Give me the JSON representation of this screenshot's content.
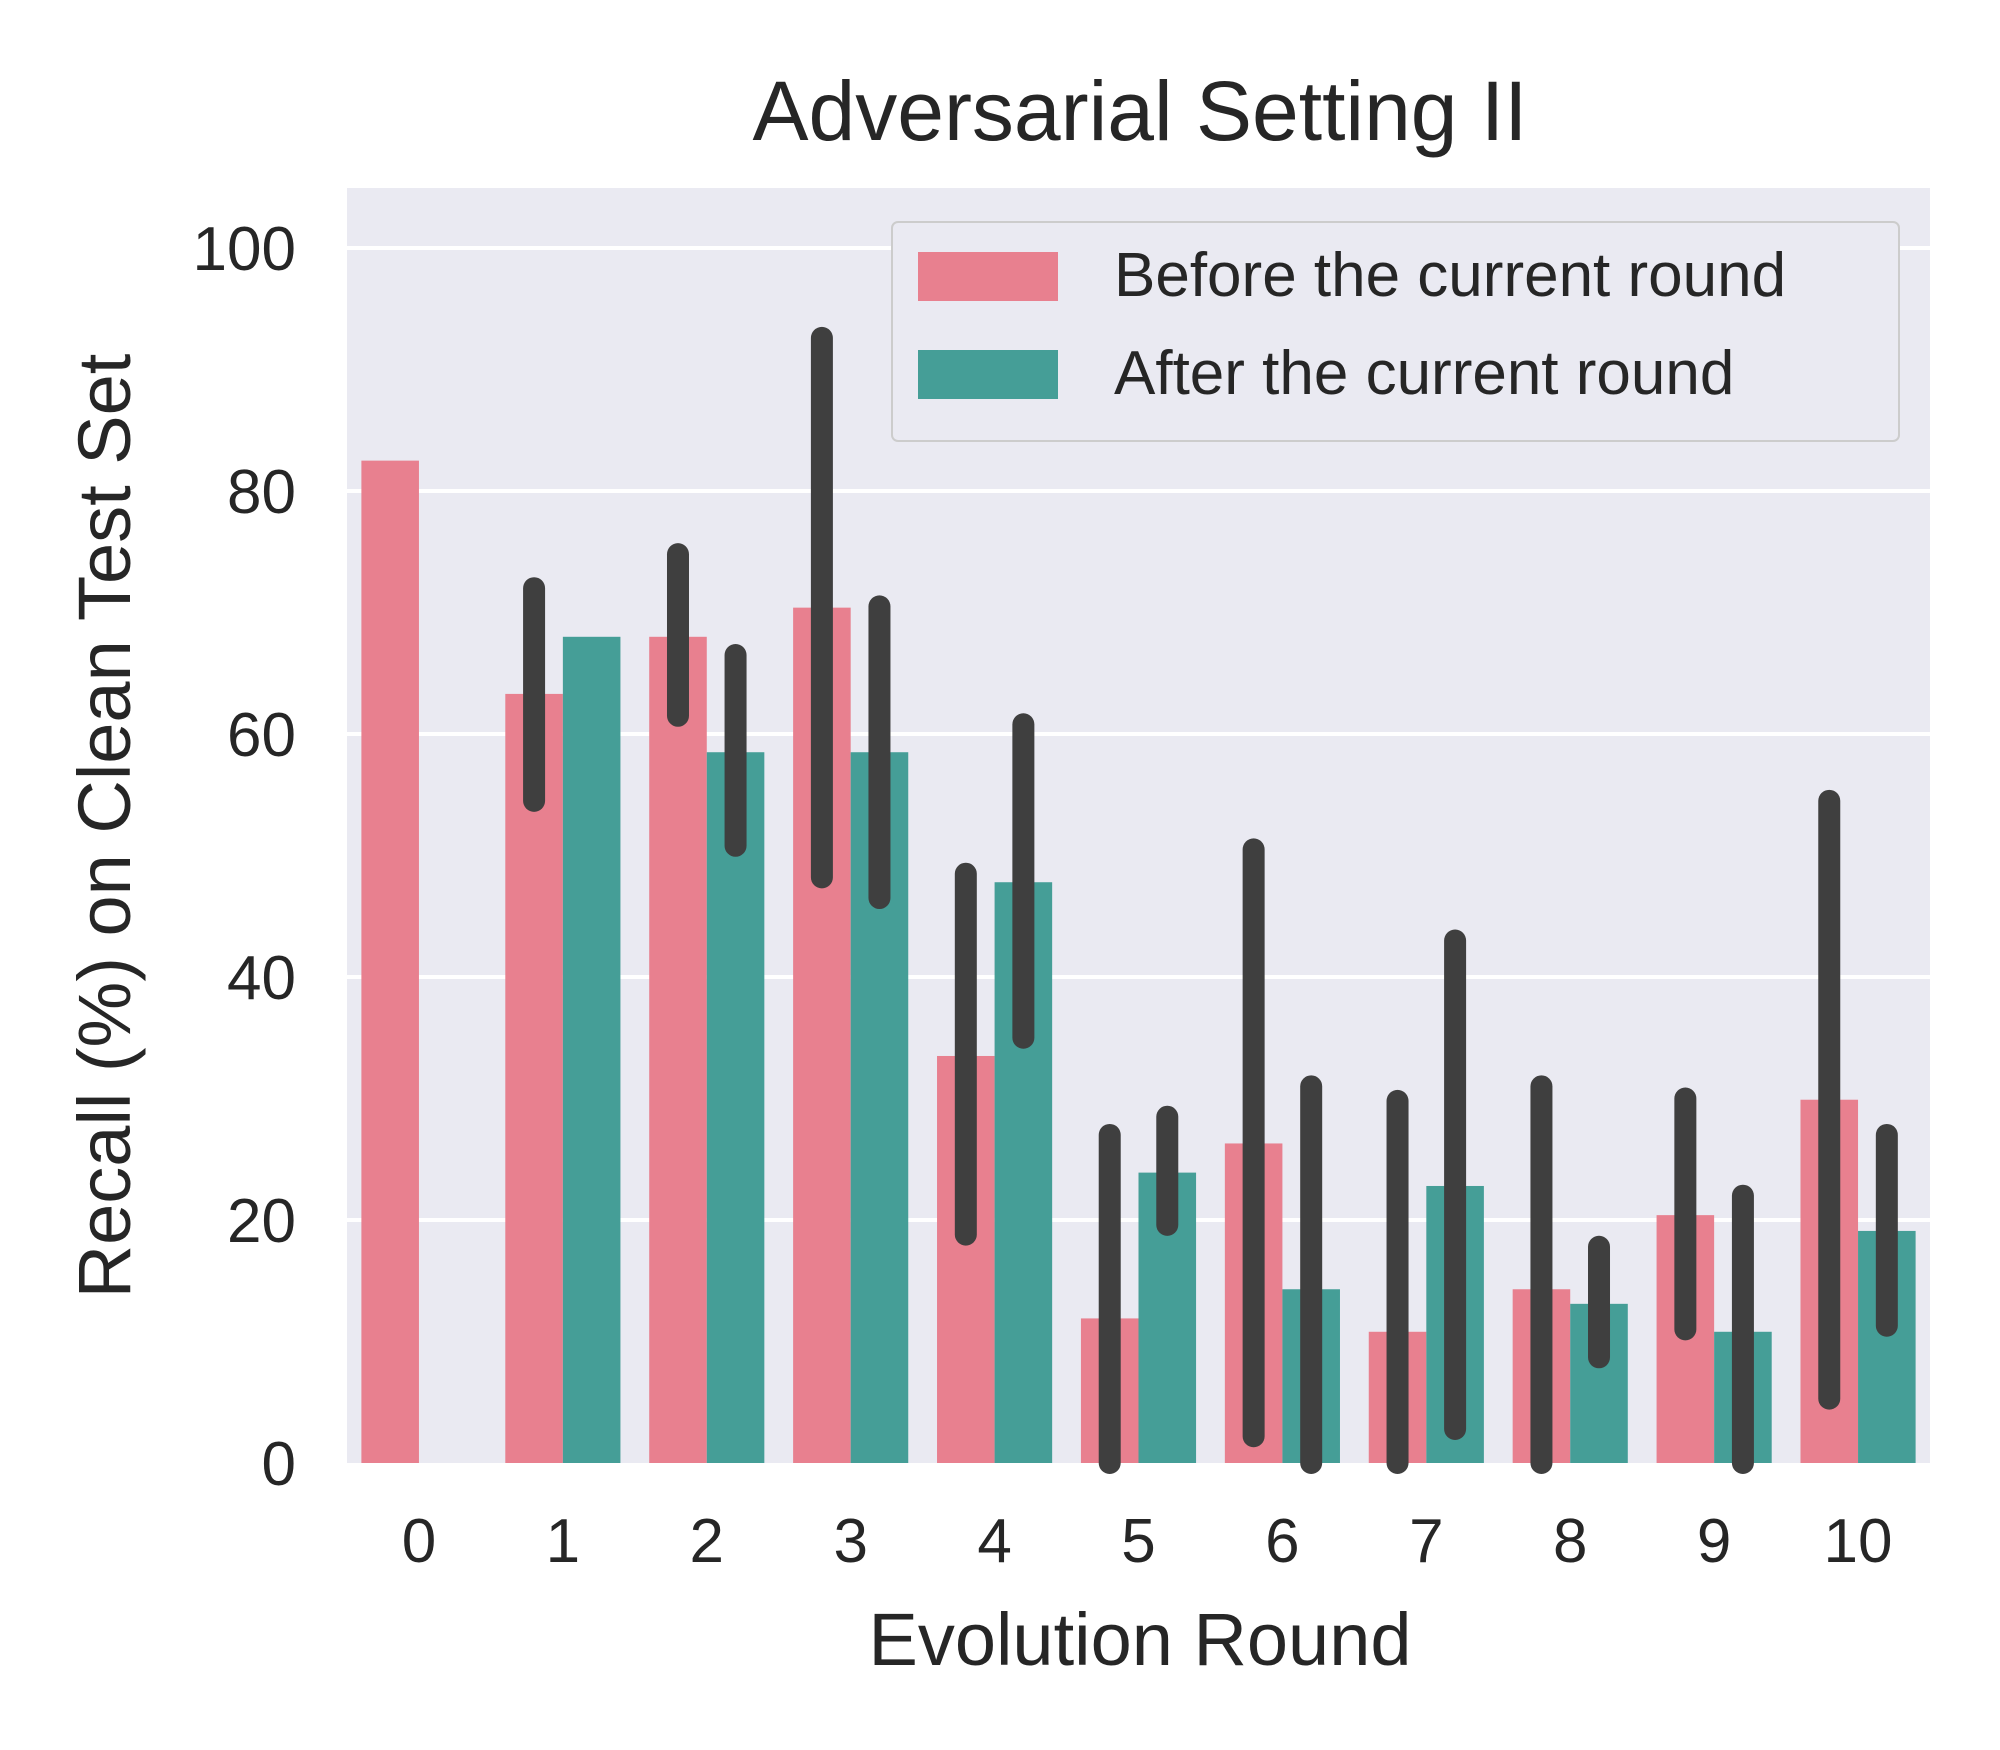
{
  "chart_data": {
    "type": "bar",
    "title": "Adversarial Setting II",
    "xlabel": "Evolution Round",
    "ylabel": "Recall (%) on Clean Test Set",
    "categories": [
      "0",
      "1",
      "2",
      "3",
      "4",
      "5",
      "6",
      "7",
      "8",
      "9",
      "10"
    ],
    "ylim": [
      0,
      105
    ],
    "yticks": [
      "0",
      "20",
      "40",
      "60",
      "80",
      "100"
    ],
    "grid": true,
    "legend_position": "top-right",
    "series": [
      {
        "name": "Before the current round",
        "color": "#e8808f",
        "values": [
          82.5,
          63.3,
          68.0,
          70.4,
          33.5,
          11.9,
          26.3,
          10.8,
          14.3,
          20.4,
          29.9
        ],
        "ci": [
          null,
          [
            54.5,
            72.0
          ],
          [
            61.5,
            74.8
          ],
          [
            48.2,
            92.6
          ],
          [
            18.8,
            48.5
          ],
          [
            0,
            27.0
          ],
          [
            2.2,
            50.5
          ],
          [
            0,
            29.8
          ],
          [
            0,
            31.0
          ],
          [
            11.0,
            30.0
          ],
          [
            5.3,
            54.5
          ]
        ]
      },
      {
        "name": "After the current round",
        "color": "#459e97",
        "values": [
          null,
          68.0,
          58.5,
          58.5,
          47.8,
          23.9,
          14.3,
          22.8,
          13.1,
          10.8,
          19.1
        ],
        "ci": [
          null,
          null,
          [
            50.8,
            66.5
          ],
          [
            46.5,
            70.5
          ],
          [
            35.0,
            60.8
          ],
          [
            19.6,
            28.5
          ],
          [
            0,
            31.0
          ],
          [
            2.8,
            43.0
          ],
          [
            8.7,
            17.8
          ],
          [
            0,
            22.0
          ],
          [
            11.3,
            27.0
          ]
        ]
      }
    ]
  }
}
